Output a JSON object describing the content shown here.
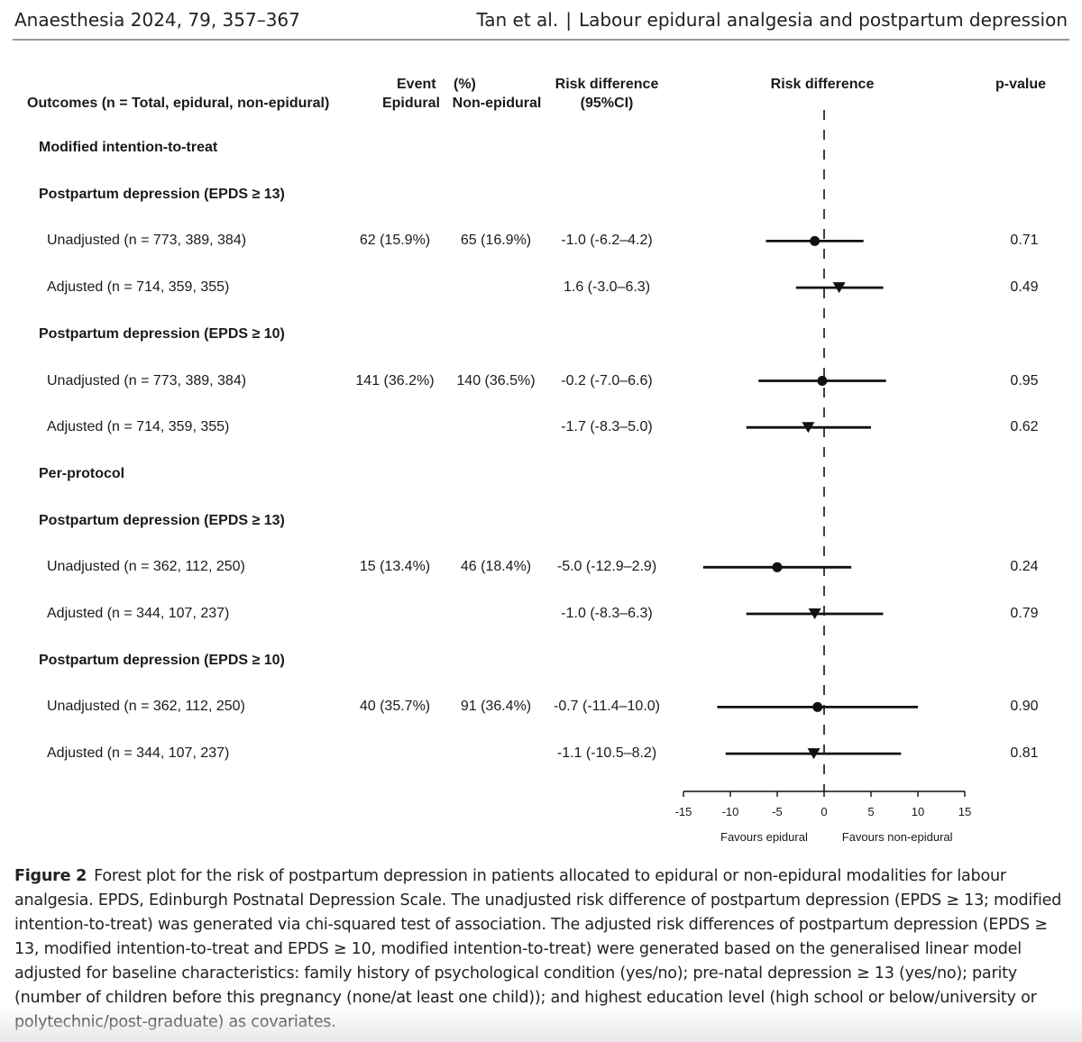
{
  "header": {
    "journal": "Anaesthesia 2024, 79, 357–367",
    "authors": "Tan et al.",
    "separator": "|",
    "short_title": "Labour epidural analgesia and postpartum depression"
  },
  "table_headers": {
    "outcomes": "Outcomes (n = Total, epidural, non-epidural)",
    "event": "Event",
    "percent": "(%)",
    "epidural": "Epidural",
    "non_epidural": "Non-epidural",
    "rd_line1": "Risk difference",
    "rd_line2": "(95%CI)",
    "plot_title": "Risk difference",
    "pvalue": "p-value"
  },
  "rows": [
    {
      "type": "section",
      "label": "Modified intention-to-treat"
    },
    {
      "type": "group",
      "label": "Postpartum depression (EPDS ≥ 13)"
    },
    {
      "type": "data",
      "label": "Unadjusted (n = 773, 389, 384)",
      "epidural": "62 (15.9%)",
      "non_epidural": "65 (16.9%)",
      "rd_text": "-1.0 (-6.2–4.2)",
      "p": "0.71",
      "rd": -1.0,
      "lo": -6.2,
      "hi": 4.2,
      "marker": "circle"
    },
    {
      "type": "data",
      "label": "Adjusted (n = 714, 359, 355)",
      "epidural": "",
      "non_epidural": "",
      "rd_text": "1.6 (-3.0–6.3)",
      "p": "0.49",
      "rd": 1.6,
      "lo": -3.0,
      "hi": 6.3,
      "marker": "triangle"
    },
    {
      "type": "group",
      "label": "Postpartum depression (EPDS ≥ 10)"
    },
    {
      "type": "data",
      "label": "Unadjusted (n = 773, 389, 384)",
      "epidural": "141 (36.2%)",
      "non_epidural": "140 (36.5%)",
      "rd_text": "-0.2 (-7.0–6.6)",
      "p": "0.95",
      "rd": -0.2,
      "lo": -7.0,
      "hi": 6.6,
      "marker": "circle"
    },
    {
      "type": "data",
      "label": "Adjusted (n = 714, 359, 355)",
      "epidural": "",
      "non_epidural": "",
      "rd_text": "-1.7 (-8.3–5.0)",
      "p": "0.62",
      "rd": -1.7,
      "lo": -8.3,
      "hi": 5.0,
      "marker": "triangle"
    },
    {
      "type": "section",
      "label": "Per-protocol"
    },
    {
      "type": "group",
      "label": "Postpartum depression (EPDS ≥ 13)"
    },
    {
      "type": "data",
      "label": "Unadjusted (n = 362, 112, 250)",
      "epidural": "15 (13.4%)",
      "non_epidural": "46 (18.4%)",
      "rd_text": "-5.0 (-12.9–2.9)",
      "p": "0.24",
      "rd": -5.0,
      "lo": -12.9,
      "hi": 2.9,
      "marker": "circle"
    },
    {
      "type": "data",
      "label": "Adjusted (n = 344, 107, 237)",
      "epidural": "",
      "non_epidural": "",
      "rd_text": "-1.0 (-8.3–6.3)",
      "p": "0.79",
      "rd": -1.0,
      "lo": -8.3,
      "hi": 6.3,
      "marker": "triangle"
    },
    {
      "type": "group",
      "label": "Postpartum depression (EPDS ≥ 10)"
    },
    {
      "type": "data",
      "label": "Unadjusted (n = 362, 112, 250)",
      "epidural": "40 (35.7%)",
      "non_epidural": "91 (36.4%)",
      "rd_text": "-0.7 (-11.4–10.0)",
      "p": "0.90",
      "rd": -0.7,
      "lo": -11.4,
      "hi": 10.0,
      "marker": "circle"
    },
    {
      "type": "data",
      "label": "Adjusted (n = 344, 107, 237)",
      "epidural": "",
      "non_epidural": "",
      "rd_text": "-1.1 (-10.5–8.2)",
      "p": "0.81",
      "rd": -1.1,
      "lo": -10.5,
      "hi": 8.2,
      "marker": "triangle"
    }
  ],
  "chart_data": {
    "type": "forest",
    "title": "Risk difference",
    "xlim": [
      -15,
      15
    ],
    "xticks": [
      "-15",
      "-10",
      "-5",
      "0",
      "5",
      "10",
      "15"
    ],
    "reference_line": 0,
    "left_label": "Favours epidural",
    "right_label": "Favours non-epidural",
    "marker_legend": {
      "circle": "Unadjusted",
      "triangle": "Adjusted"
    },
    "color": "#111111"
  },
  "caption": {
    "label": "Figure 2",
    "text": "Forest plot for the risk of postpartum depression in patients allocated to epidural or non-epidural modalities for labour analgesia. EPDS, Edinburgh Postnatal Depression Scale. The unadjusted risk difference of postpartum depression (EPDS ≥ 13; modified intention-to-treat) was generated via chi-squared test of association. The adjusted risk differences of postpartum depression (EPDS ≥ 13, modified intention-to-treat and EPDS ≥ 10, modified intention-to-treat) were generated based on the generalised linear model adjusted for baseline characteristics: family history of psychological condition (yes/no); pre-natal depression ≥ 13 (yes/no); parity (number of children before this pregnancy (none/at least one child)); and highest education level (high school or below/university or polytechnic/post-graduate) as covariates."
  }
}
